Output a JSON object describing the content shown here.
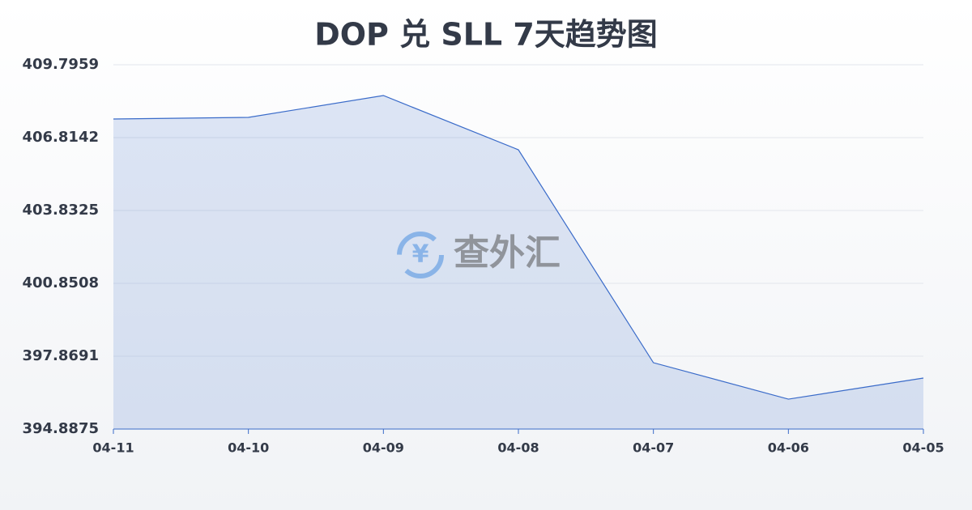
{
  "chart_data": {
    "type": "area",
    "title": "DOP 兑 SLL 7天趋势图",
    "watermark": "查外汇",
    "categories": [
      "04-11",
      "04-10",
      "04-09",
      "04-08",
      "04-07",
      "04-06",
      "04-05"
    ],
    "values": [
      407.576,
      407.642,
      408.537,
      406.317,
      397.603,
      396.112,
      396.974
    ],
    "color": "#3a6bc9",
    "ylim": [
      394.8875,
      409.7959
    ],
    "yticks": [
      394.8875,
      397.8691,
      400.8508,
      403.8325,
      406.8142,
      409.7959
    ],
    "grid": true
  }
}
